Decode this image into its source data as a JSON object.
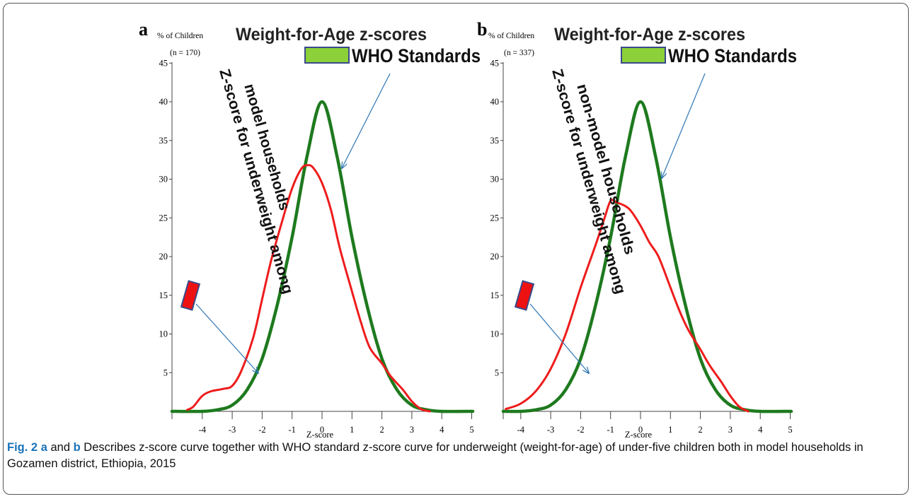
{
  "figure": {
    "caption": {
      "label": "Fig. 2",
      "a": "a",
      "and": "and",
      "b": "b",
      "text": "Describes z-score curve together with WHO standard z-score curve for underweight (weight-for-age) of under-five children both in model households in Gozamen district, Ethiopia, 2015"
    }
  },
  "chart_data": [
    {
      "type": "line",
      "panel_label": "a",
      "title": "Weight-for-Age z-scores",
      "ylabel": "% of Children",
      "sample_note": "(n = 170)",
      "xlabel": "Z-score",
      "xlim": [
        -5,
        5
      ],
      "ylim": [
        0,
        45
      ],
      "xticks": [
        -4,
        -3,
        -2,
        -1,
        0,
        1,
        2,
        3,
        4,
        5
      ],
      "yticks": [
        5,
        10,
        15,
        20,
        25,
        30,
        35,
        40,
        45
      ],
      "grid": false,
      "legend": {
        "placement": "top-right",
        "entries": [
          "WHO Standards"
        ]
      },
      "annotation": {
        "text_line1": "Z-score for underweight among",
        "text_line2": "model households"
      },
      "series": [
        {
          "name": "WHO Standards",
          "color": "#1e7a1e",
          "x": [
            -5.5,
            -4.0,
            -3.5,
            -3.0,
            -2.5,
            -2.0,
            -1.5,
            -1.0,
            -0.5,
            0.0,
            0.5,
            1.0,
            1.5,
            2.0,
            2.5,
            3.0,
            3.5,
            4.0,
            5.5
          ],
          "y": [
            0,
            0,
            0.2,
            0.8,
            2.8,
            6.8,
            13.7,
            22.5,
            33.0,
            40.0,
            33.0,
            22.5,
            13.7,
            6.8,
            2.8,
            0.8,
            0.2,
            0,
            0
          ]
        },
        {
          "name": "Z-score for underweight among model households",
          "color": "#ee1c1c",
          "x": [
            -4.5,
            -4.3,
            -4.0,
            -3.7,
            -3.3,
            -3.0,
            -2.7,
            -2.3,
            -2.0,
            -1.7,
            -1.3,
            -1.0,
            -0.7,
            -0.5,
            -0.3,
            0.0,
            0.3,
            0.6,
            1.0,
            1.3,
            1.6,
            2.0,
            2.3,
            2.7,
            3.0,
            3.3,
            3.6
          ],
          "y": [
            0.2,
            0.6,
            2.0,
            2.6,
            2.9,
            3.3,
            5.2,
            9.5,
            14.5,
            19.5,
            25.0,
            28.8,
            31.3,
            31.8,
            31.5,
            29.5,
            26.0,
            21.0,
            15.5,
            11.5,
            8.2,
            6.2,
            4.5,
            2.8,
            1.3,
            0.3,
            0
          ]
        }
      ]
    },
    {
      "type": "line",
      "panel_label": "b",
      "title": "Weight-for-Age z-scores",
      "ylabel": "% of Children",
      "sample_note": "(n = 337)",
      "xlabel": "Z-score",
      "xlim": [
        -5,
        5
      ],
      "ylim": [
        0,
        45
      ],
      "xticks": [
        -4,
        -3,
        -2,
        -1,
        0,
        1,
        2,
        3,
        4,
        5
      ],
      "yticks": [
        5,
        10,
        15,
        20,
        25,
        30,
        35,
        40,
        45
      ],
      "grid": false,
      "legend": {
        "placement": "top-right",
        "entries": [
          "WHO Standards"
        ]
      },
      "annotation": {
        "text_line1": "Z-score for underweight among",
        "text_line2": "non-model households"
      },
      "series": [
        {
          "name": "WHO Standards",
          "color": "#1e7a1e",
          "x": [
            -5.5,
            -4.0,
            -3.5,
            -3.0,
            -2.5,
            -2.0,
            -1.5,
            -1.0,
            -0.5,
            0.0,
            0.5,
            1.0,
            1.5,
            2.0,
            2.5,
            3.0,
            3.5,
            4.0,
            5.5
          ],
          "y": [
            0,
            0,
            0.2,
            0.8,
            2.8,
            6.8,
            13.7,
            22.5,
            33.0,
            40.0,
            33.0,
            22.5,
            13.7,
            6.8,
            2.8,
            0.8,
            0.2,
            0,
            0
          ]
        },
        {
          "name": "Z-score for underweight among non-model households",
          "color": "#ee1c1c",
          "x": [
            -4.5,
            -4.0,
            -3.5,
            -3.0,
            -2.5,
            -2.0,
            -1.5,
            -1.2,
            -1.0,
            -0.8,
            -0.5,
            -0.3,
            0.0,
            0.3,
            0.6,
            1.0,
            1.3,
            1.6,
            2.0,
            2.3,
            2.7,
            3.0,
            3.3,
            3.6
          ],
          "y": [
            0.3,
            1.0,
            2.6,
            5.5,
            10.0,
            16.0,
            21.5,
            25.0,
            27.2,
            27.0,
            26.5,
            25.8,
            24.0,
            21.8,
            20.0,
            16.0,
            13.0,
            10.5,
            8.0,
            6.0,
            3.8,
            2.0,
            0.6,
            0
          ]
        }
      ]
    }
  ]
}
